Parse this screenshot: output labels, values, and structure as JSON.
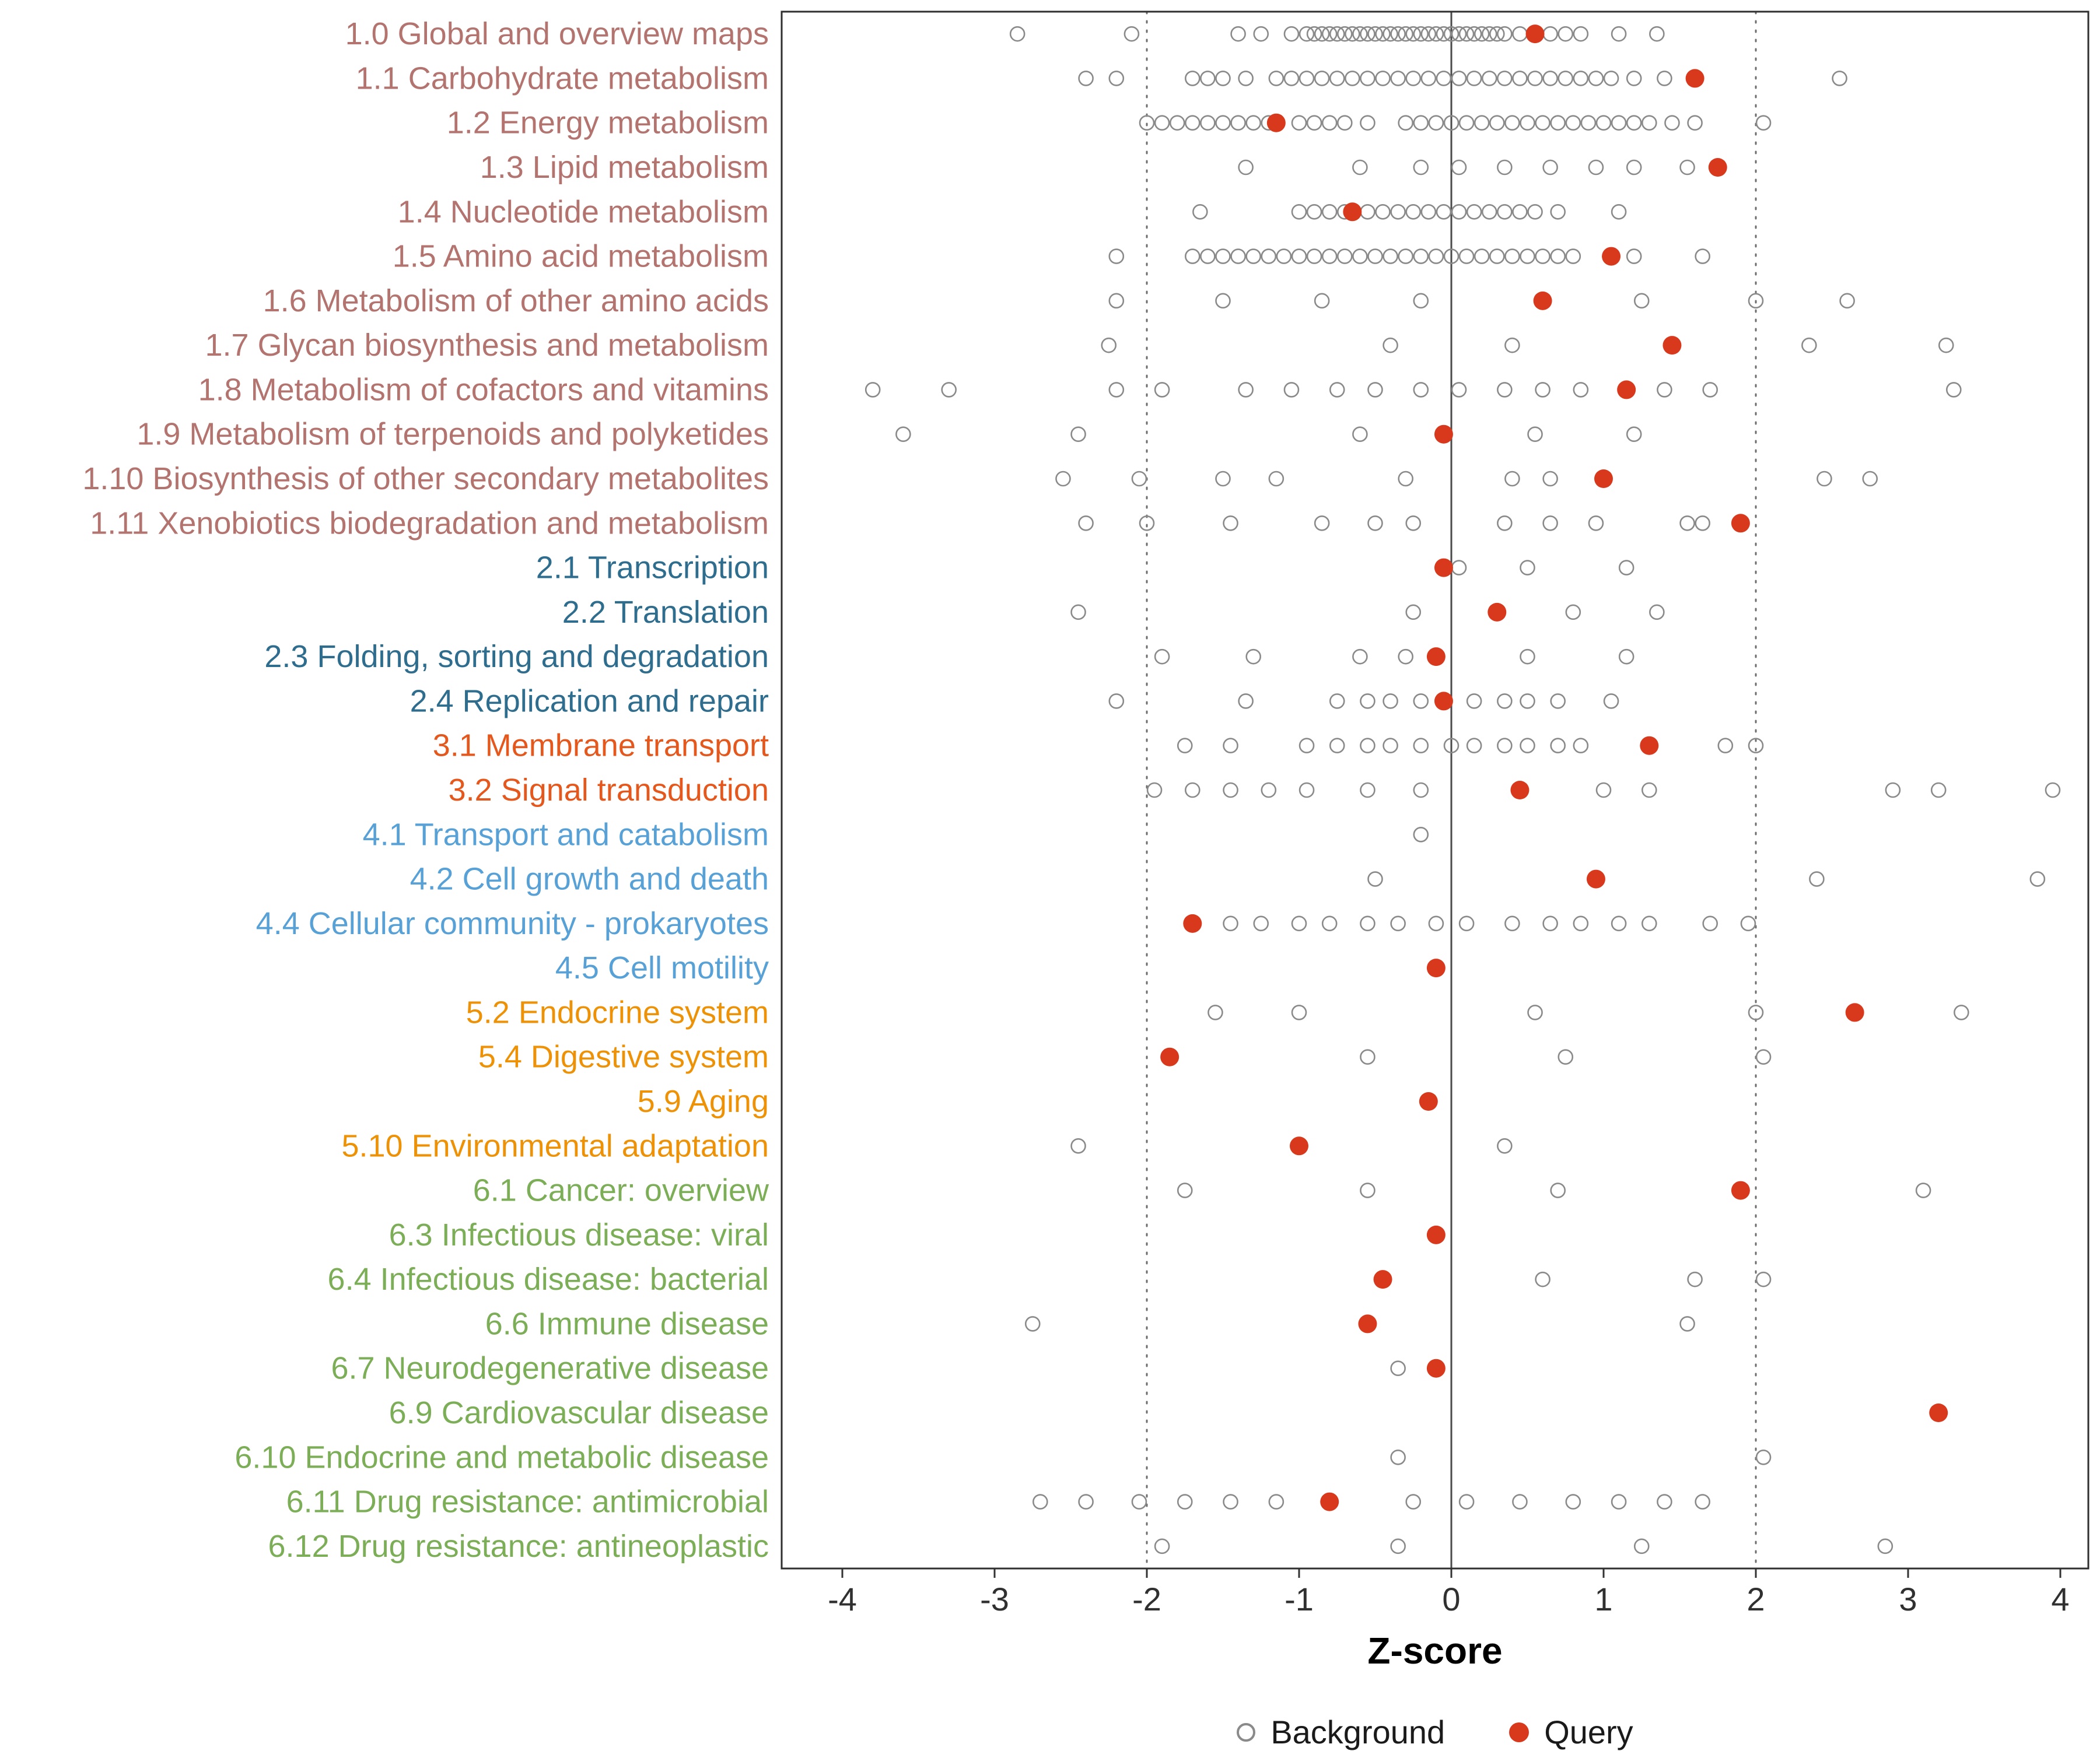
{
  "chart_data": {
    "type": "scatter",
    "title": "",
    "xlabel": "Z-score",
    "ylabel": "",
    "xlim": [
      -4.4,
      4.2
    ],
    "x_ticks": [
      -4,
      -3,
      -2,
      -1,
      0,
      1,
      2,
      3,
      4
    ],
    "grid": false,
    "legend_position": "bottom",
    "reference_lines": {
      "solid": [
        0
      ],
      "dotted": [
        -2,
        2
      ]
    },
    "legend": [
      {
        "label": "Background",
        "marker": "open-circle",
        "color": "#8a8a8a"
      },
      {
        "label": "Query",
        "marker": "filled-circle",
        "color": "#d8391d"
      }
    ],
    "group_colors": {
      "1": "#b3736e",
      "2": "#2e6d8d",
      "3": "#e4581e",
      "4": "#57a1d6",
      "5": "#ed9207",
      "6": "#7cad57"
    },
    "rows": [
      {
        "label": "1.0 Global and overview maps",
        "group": "1",
        "background": [
          -2.85,
          -2.1,
          -1.4,
          -1.25,
          -1.05,
          -0.95,
          -0.9,
          -0.85,
          -0.8,
          -0.75,
          -0.7,
          -0.65,
          -0.6,
          -0.55,
          -0.5,
          -0.45,
          -0.4,
          -0.35,
          -0.3,
          -0.25,
          -0.2,
          -0.15,
          -0.1,
          -0.05,
          0,
          0.05,
          0.1,
          0.15,
          0.2,
          0.25,
          0.3,
          0.35,
          0.45,
          0.55,
          0.65,
          0.75,
          0.85,
          1.1,
          1.35
        ],
        "query": 0.55
      },
      {
        "label": "1.1 Carbohydrate metabolism",
        "group": "1",
        "background": [
          -2.4,
          -2.2,
          -1.7,
          -1.6,
          -1.5,
          -1.35,
          -1.15,
          -1.05,
          -0.95,
          -0.85,
          -0.75,
          -0.65,
          -0.55,
          -0.45,
          -0.35,
          -0.25,
          -0.15,
          -0.05,
          0.05,
          0.15,
          0.25,
          0.35,
          0.45,
          0.55,
          0.65,
          0.75,
          0.85,
          0.95,
          1.05,
          1.2,
          1.4,
          2.55
        ],
        "query": 1.6
      },
      {
        "label": "1.2 Energy metabolism",
        "group": "1",
        "background": [
          -2.0,
          -1.9,
          -1.8,
          -1.7,
          -1.6,
          -1.5,
          -1.4,
          -1.3,
          -1.2,
          -1.0,
          -0.9,
          -0.8,
          -0.7,
          -0.55,
          -0.3,
          -0.2,
          -0.1,
          0,
          0.1,
          0.2,
          0.3,
          0.4,
          0.5,
          0.6,
          0.7,
          0.8,
          0.9,
          1.0,
          1.1,
          1.2,
          1.3,
          1.45,
          1.6,
          2.05
        ],
        "query": -1.15
      },
      {
        "label": "1.3 Lipid metabolism",
        "group": "1",
        "background": [
          -1.35,
          -0.6,
          -0.2,
          0.05,
          0.35,
          0.65,
          0.95,
          1.2,
          1.55
        ],
        "query": 1.75
      },
      {
        "label": "1.4 Nucleotide metabolism",
        "group": "1",
        "background": [
          -1.65,
          -1.0,
          -0.9,
          -0.8,
          -0.7,
          -0.55,
          -0.45,
          -0.35,
          -0.25,
          -0.15,
          -0.05,
          0.05,
          0.15,
          0.25,
          0.35,
          0.45,
          0.55,
          0.7,
          1.1
        ],
        "query": -0.65
      },
      {
        "label": "1.5 Amino acid metabolism",
        "group": "1",
        "background": [
          -2.2,
          -1.7,
          -1.6,
          -1.5,
          -1.4,
          -1.3,
          -1.2,
          -1.1,
          -1.0,
          -0.9,
          -0.8,
          -0.7,
          -0.6,
          -0.5,
          -0.4,
          -0.3,
          -0.2,
          -0.1,
          0,
          0.1,
          0.2,
          0.3,
          0.4,
          0.5,
          0.6,
          0.7,
          0.8,
          1.2,
          1.65
        ],
        "query": 1.05
      },
      {
        "label": "1.6 Metabolism of other amino acids",
        "group": "1",
        "background": [
          -2.2,
          -1.5,
          -0.85,
          -0.2,
          1.25,
          2.0,
          2.6
        ],
        "query": 0.6
      },
      {
        "label": "1.7 Glycan biosynthesis and metabolism",
        "group": "1",
        "background": [
          -2.25,
          -0.4,
          0.4,
          2.35,
          3.25
        ],
        "query": 1.45
      },
      {
        "label": "1.8 Metabolism of cofactors and vitamins",
        "group": "1",
        "background": [
          -3.8,
          -3.3,
          -2.2,
          -1.9,
          -1.35,
          -1.05,
          -0.75,
          -0.5,
          -0.2,
          0.05,
          0.35,
          0.6,
          0.85,
          1.4,
          1.7,
          3.3
        ],
        "query": 1.15
      },
      {
        "label": "1.9 Metabolism of terpenoids and polyketides",
        "group": "1",
        "background": [
          -3.6,
          -2.45,
          -0.6,
          0.55,
          1.2
        ],
        "query": -0.05
      },
      {
        "label": "1.10 Biosynthesis of other secondary metabolites",
        "group": "1",
        "background": [
          -2.55,
          -2.05,
          -1.5,
          -1.15,
          -0.3,
          0.4,
          0.65,
          2.45,
          2.75
        ],
        "query": 1.0
      },
      {
        "label": "1.11 Xenobiotics biodegradation and metabolism",
        "group": "1",
        "background": [
          -2.4,
          -2.0,
          -1.45,
          -0.85,
          -0.5,
          -0.25,
          0.35,
          0.65,
          0.95,
          1.55,
          1.65
        ],
        "query": 1.9
      },
      {
        "label": "2.1 Transcription",
        "group": "2",
        "background": [
          0.05,
          0.5,
          1.15
        ],
        "query": -0.05
      },
      {
        "label": "2.2 Translation",
        "group": "2",
        "background": [
          -2.45,
          -0.25,
          0.8,
          1.35
        ],
        "query": 0.3
      },
      {
        "label": "2.3 Folding, sorting and degradation",
        "group": "2",
        "background": [
          -1.9,
          -1.3,
          -0.6,
          -0.3,
          0.5,
          1.15
        ],
        "query": -0.1
      },
      {
        "label": "2.4 Replication and repair",
        "group": "2",
        "background": [
          -2.2,
          -1.35,
          -0.75,
          -0.55,
          -0.4,
          -0.2,
          0.15,
          0.35,
          0.5,
          0.7,
          1.05
        ],
        "query": -0.05
      },
      {
        "label": "3.1 Membrane transport",
        "group": "3",
        "background": [
          -1.75,
          -1.45,
          -0.95,
          -0.75,
          -0.55,
          -0.4,
          -0.2,
          0,
          0.15,
          0.35,
          0.5,
          0.7,
          0.85,
          1.8,
          2.0
        ],
        "query": 1.3
      },
      {
        "label": "3.2 Signal transduction",
        "group": "3",
        "background": [
          -1.95,
          -1.7,
          -1.45,
          -1.2,
          -0.95,
          -0.55,
          -0.2,
          1.0,
          1.3,
          2.9,
          3.2,
          3.95
        ],
        "query": 0.45
      },
      {
        "label": "4.1 Transport and catabolism",
        "group": "4",
        "background": [
          -0.2
        ],
        "query": null
      },
      {
        "label": "4.2 Cell growth and death",
        "group": "4",
        "background": [
          -0.5,
          2.4,
          3.85
        ],
        "query": 0.95
      },
      {
        "label": "4.4 Cellular community - prokaryotes",
        "group": "4",
        "background": [
          -1.45,
          -1.25,
          -1.0,
          -0.8,
          -0.55,
          -0.35,
          -0.1,
          0.1,
          0.4,
          0.65,
          0.85,
          1.1,
          1.3,
          1.7,
          1.95
        ],
        "query": -1.7
      },
      {
        "label": "4.5 Cell motility",
        "group": "4",
        "background": [],
        "query": -0.1
      },
      {
        "label": "5.2 Endocrine system",
        "group": "5",
        "background": [
          -1.55,
          -1.0,
          0.55,
          2.0,
          3.35
        ],
        "query": 2.65
      },
      {
        "label": "5.4 Digestive system",
        "group": "5",
        "background": [
          -0.55,
          0.75,
          2.05
        ],
        "query": -1.85
      },
      {
        "label": "5.9 Aging",
        "group": "5",
        "background": [],
        "query": -0.15
      },
      {
        "label": "5.10 Environmental adaptation",
        "group": "5",
        "background": [
          -2.45,
          0.35
        ],
        "query": -1.0
      },
      {
        "label": "6.1 Cancer: overview",
        "group": "6",
        "background": [
          -1.75,
          -0.55,
          0.7,
          3.1
        ],
        "query": 1.9
      },
      {
        "label": "6.3 Infectious disease: viral",
        "group": "6",
        "background": [],
        "query": -0.1
      },
      {
        "label": "6.4 Infectious disease: bacterial",
        "group": "6",
        "background": [
          0.6,
          1.6,
          2.05
        ],
        "query": -0.45
      },
      {
        "label": "6.6 Immune disease",
        "group": "6",
        "background": [
          -2.75,
          1.55
        ],
        "query": -0.55
      },
      {
        "label": "6.7 Neurodegenerative disease",
        "group": "6",
        "background": [
          -0.35
        ],
        "query": -0.1
      },
      {
        "label": "6.9 Cardiovascular disease",
        "group": "6",
        "background": [],
        "query": 3.2
      },
      {
        "label": "6.10 Endocrine and metabolic disease",
        "group": "6",
        "background": [
          -0.35,
          2.05
        ],
        "query": null
      },
      {
        "label": "6.11 Drug resistance: antimicrobial",
        "group": "6",
        "background": [
          -2.7,
          -2.4,
          -2.05,
          -1.75,
          -1.45,
          -1.15,
          -0.25,
          0.1,
          0.45,
          0.8,
          1.1,
          1.4,
          1.65
        ],
        "query": -0.8
      },
      {
        "label": "6.12 Drug resistance: antineoplastic",
        "group": "6",
        "background": [
          -1.9,
          -0.35,
          1.25,
          2.85
        ],
        "query": null
      }
    ]
  }
}
